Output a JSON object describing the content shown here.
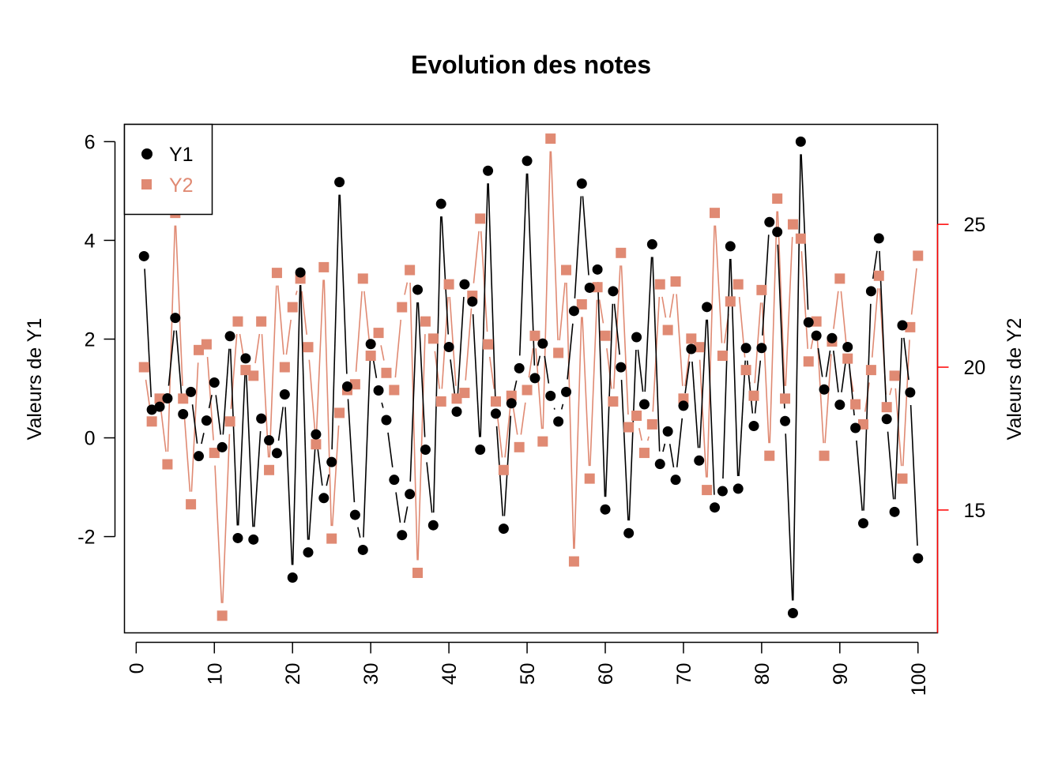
{
  "chart_data": {
    "type": "line",
    "title": "Evolution des notes",
    "x": [
      1,
      2,
      3,
      4,
      5,
      6,
      7,
      8,
      9,
      10,
      11,
      12,
      13,
      14,
      15,
      16,
      17,
      18,
      19,
      20,
      21,
      22,
      23,
      24,
      25,
      26,
      27,
      28,
      29,
      30,
      31,
      32,
      33,
      34,
      35,
      36,
      37,
      38,
      39,
      40,
      41,
      42,
      43,
      44,
      45,
      46,
      47,
      48,
      49,
      50,
      51,
      52,
      53,
      54,
      55,
      56,
      57,
      58,
      59,
      60,
      61,
      62,
      63,
      64,
      65,
      66,
      67,
      68,
      69,
      70,
      71,
      72,
      73,
      74,
      75,
      76,
      77,
      78,
      79,
      80,
      81,
      82,
      83,
      84,
      85,
      86,
      87,
      88,
      89,
      90,
      91,
      92,
      93,
      94,
      95,
      96,
      97,
      98,
      99,
      100
    ],
    "xlim": [
      -1.5,
      102.5
    ],
    "x_ticks": [
      0,
      10,
      20,
      30,
      40,
      50,
      60,
      70,
      80,
      90,
      100
    ],
    "x_tick_labels": [
      "0",
      "10",
      "20",
      "30",
      "40",
      "50",
      "60",
      "70",
      "80",
      "90",
      "100"
    ],
    "series": [
      {
        "name": "Y1",
        "axis": "left",
        "color": "#000000",
        "marker": "circle",
        "values": [
          3.68,
          0.57,
          0.63,
          0.8,
          2.43,
          0.48,
          0.93,
          -0.37,
          0.35,
          1.12,
          -0.19,
          2.06,
          -2.03,
          1.61,
          -2.06,
          0.39,
          -0.05,
          -0.31,
          0.88,
          -2.83,
          3.35,
          -2.32,
          0.07,
          -1.22,
          -0.49,
          5.18,
          1.04,
          -1.56,
          -2.27,
          1.9,
          0.96,
          0.36,
          -0.85,
          -1.97,
          -1.14,
          3.0,
          -0.24,
          -1.77,
          4.74,
          1.84,
          0.53,
          3.11,
          2.76,
          -0.24,
          5.41,
          0.49,
          -1.84,
          0.7,
          1.41,
          5.61,
          1.21,
          1.91,
          0.85,
          0.33,
          0.93,
          2.57,
          5.15,
          3.04,
          3.41,
          -1.45,
          2.97,
          1.43,
          -1.93,
          2.04,
          0.68,
          3.92,
          -0.53,
          0.13,
          -0.85,
          0.65,
          1.8,
          -0.46,
          2.65,
          -1.41,
          -1.08,
          3.88,
          -1.03,
          1.82,
          0.24,
          1.82,
          4.37,
          4.17,
          0.34,
          -3.55,
          6.0,
          2.34,
          2.07,
          0.98,
          2.02,
          0.67,
          1.84,
          0.2,
          -1.73,
          2.97,
          4.04,
          0.38,
          -1.5,
          2.28,
          0.92,
          -2.44
        ]
      },
      {
        "name": "Y2",
        "axis": "right",
        "color": "#E08A73",
        "marker": "square",
        "values": [
          20.0,
          18.1,
          18.9,
          16.6,
          25.4,
          18.9,
          15.2,
          20.6,
          20.8,
          17.0,
          11.3,
          18.1,
          21.6,
          19.9,
          19.7,
          21.6,
          16.4,
          23.3,
          20.0,
          22.1,
          23.1,
          20.7,
          17.3,
          23.5,
          14.0,
          18.4,
          19.2,
          19.4,
          23.1,
          20.4,
          21.2,
          19.8,
          19.2,
          22.1,
          23.4,
          12.8,
          21.6,
          21.0,
          18.8,
          22.9,
          18.9,
          19.1,
          22.5,
          25.2,
          20.8,
          18.8,
          16.4,
          19.0,
          17.2,
          19.2,
          21.1,
          17.4,
          28.0,
          20.5,
          23.4,
          13.2,
          22.2,
          16.1,
          22.8,
          21.1,
          18.8,
          24.0,
          17.9,
          18.3,
          17.0,
          18.0,
          22.9,
          21.3,
          23.0,
          18.9,
          21.0,
          20.7,
          15.7,
          25.4,
          20.4,
          22.3,
          22.9,
          19.9,
          19.0,
          22.7,
          16.9,
          25.9,
          18.9,
          25.0,
          24.5,
          20.2,
          21.6,
          16.9,
          20.9,
          23.1,
          20.3,
          18.7,
          18.0,
          19.9,
          23.2,
          18.6,
          19.7,
          16.1,
          21.4,
          23.9
        ]
      }
    ],
    "y_left": {
      "label": "Valeurs de Y1",
      "lim": [
        -3.95,
        6.35
      ],
      "ticks": [
        -2,
        0,
        2,
        4,
        6
      ],
      "tick_labels": [
        "-2",
        "0",
        "2",
        "4",
        "6"
      ],
      "color": "#000000"
    },
    "y_right": {
      "label": "Valeurs de Y2",
      "lim": [
        10.7,
        28.5
      ],
      "ticks": [
        15,
        20,
        25
      ],
      "tick_labels": [
        "15",
        "20",
        "25"
      ],
      "color": "#FF0000"
    },
    "legend": {
      "position": "top-left",
      "entries": [
        "Y1",
        "Y2"
      ]
    },
    "grid": false
  }
}
